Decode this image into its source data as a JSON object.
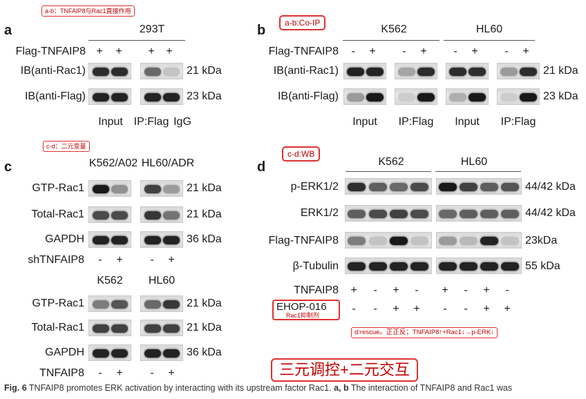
{
  "notes": {
    "ab_top": "a-b：TNFAIP8与Rac1直接作用",
    "b_coip": "a-b:Co-IP",
    "cd": "c-d：二元变量",
    "d_wb": "c-d:WB",
    "d_rescue": "d:rescue。正正反；TNFAIP8↑+Rac1↓→p-ERK↓",
    "ehop_sub": "Rac1抑制剂",
    "big": "三元调控+二元交互"
  },
  "panel_a": {
    "letter": "a",
    "cell": "293T",
    "row_flag": "Flag-TNFAIP8",
    "signs": [
      "+",
      "+",
      "+",
      "+"
    ],
    "rows": [
      {
        "label": "IB(anti-Rac1)",
        "kda": "21 kDa",
        "bands": [
          0.85,
          0.85,
          0.55,
          0.1
        ]
      },
      {
        "label": "IB(anti-Flag)",
        "kda": "23 kDa",
        "bands": [
          0.9,
          0.9,
          0.9,
          0.9
        ]
      }
    ],
    "bottom": [
      "Input",
      "IP:Flag",
      "IgG"
    ]
  },
  "panel_b": {
    "letter": "b",
    "cells": [
      "K562",
      "HL60"
    ],
    "row_flag": "Flag-TNFAIP8",
    "signs": [
      "-",
      "+",
      "-",
      "+",
      "-",
      "+",
      "-",
      "+"
    ],
    "rows": [
      {
        "label": "IB(anti-Rac1)",
        "kda": "21 kDa",
        "bands": [
          0.9,
          0.9,
          0.25,
          0.85,
          0.85,
          0.85,
          0.3,
          0.85
        ]
      },
      {
        "label": "IB(anti-Flag)",
        "kda": "23 kDa",
        "bands": [
          0.3,
          0.95,
          0.05,
          0.95,
          0.2,
          0.95,
          0.05,
          0.95
        ]
      }
    ],
    "bottom": [
      "Input",
      "IP:Flag",
      "Input",
      "IP:Flag"
    ]
  },
  "panel_c": {
    "letter": "c",
    "top_cells": [
      "K562/A02",
      "HL60/ADR"
    ],
    "top_rows": [
      {
        "label": "GTP-Rac1",
        "kda": "21 kDa",
        "bands": [
          0.95,
          0.35,
          0.75,
          0.3
        ]
      },
      {
        "label": "Total-Rac1",
        "kda": "21 kDa",
        "bands": [
          0.7,
          0.7,
          0.8,
          0.5
        ]
      },
      {
        "label": "GAPDH",
        "kda": "36 kDa",
        "bands": [
          0.9,
          0.9,
          0.9,
          0.9
        ]
      }
    ],
    "sh_label": "shTNFAIP8",
    "sh_signs": [
      "-",
      "+",
      "-",
      "+"
    ],
    "bottom_cells": [
      "K562",
      "HL60"
    ],
    "bottom_rows": [
      {
        "label": "GTP-Rac1",
        "kda": "21 kDa",
        "bands": [
          0.45,
          0.65,
          0.55,
          0.8
        ]
      },
      {
        "label": "Total-Rac1",
        "kda": "21 kDa",
        "bands": [
          0.75,
          0.75,
          0.75,
          0.75
        ]
      },
      {
        "label": "GAPDH",
        "kda": "36 kDa",
        "bands": [
          0.9,
          0.9,
          0.9,
          0.9
        ]
      }
    ],
    "tn_label": "TNFAIP8",
    "tn_signs": [
      "-",
      "+",
      "-",
      "+"
    ]
  },
  "panel_d": {
    "letter": "d",
    "cells": [
      "K562",
      "HL60"
    ],
    "rows": [
      {
        "label": "p-ERK1/2",
        "kda": "44/42 kDa",
        "bands": [
          0.85,
          0.6,
          0.55,
          0.7,
          0.95,
          0.75,
          0.6,
          0.65
        ]
      },
      {
        "label": "ERK1/2",
        "kda": "44/42 kDa",
        "bands": [
          0.6,
          0.7,
          0.75,
          0.7,
          0.55,
          0.6,
          0.6,
          0.6
        ]
      },
      {
        "label": "Flag-TNFAIP8",
        "kda": "23kDa",
        "bands": [
          0.45,
          0.1,
          0.95,
          0.1,
          0.3,
          0.15,
          0.9,
          0.1
        ]
      },
      {
        "label": "β-Tubulin",
        "kda": "55 kDa",
        "bands": [
          0.9,
          0.9,
          0.9,
          0.9,
          0.9,
          0.9,
          0.9,
          0.9
        ]
      }
    ],
    "tn_label": "TNFAIP8",
    "tn_signs": [
      "+",
      "-",
      "+",
      "-",
      "+",
      "-",
      "+",
      "-"
    ],
    "ehop_label": "EHOP-016",
    "ehop_signs": [
      "-",
      "-",
      "+",
      "+",
      "-",
      "-",
      "+",
      "+"
    ]
  },
  "caption": {
    "fig": "Fig. 6",
    "text1": " TNFAIP8 promotes ERK activation by interacting with its upstream factor Rac1. ",
    "ab": "a, b",
    "text2": " The interaction of TNFAIP8 and Rac1 was"
  }
}
